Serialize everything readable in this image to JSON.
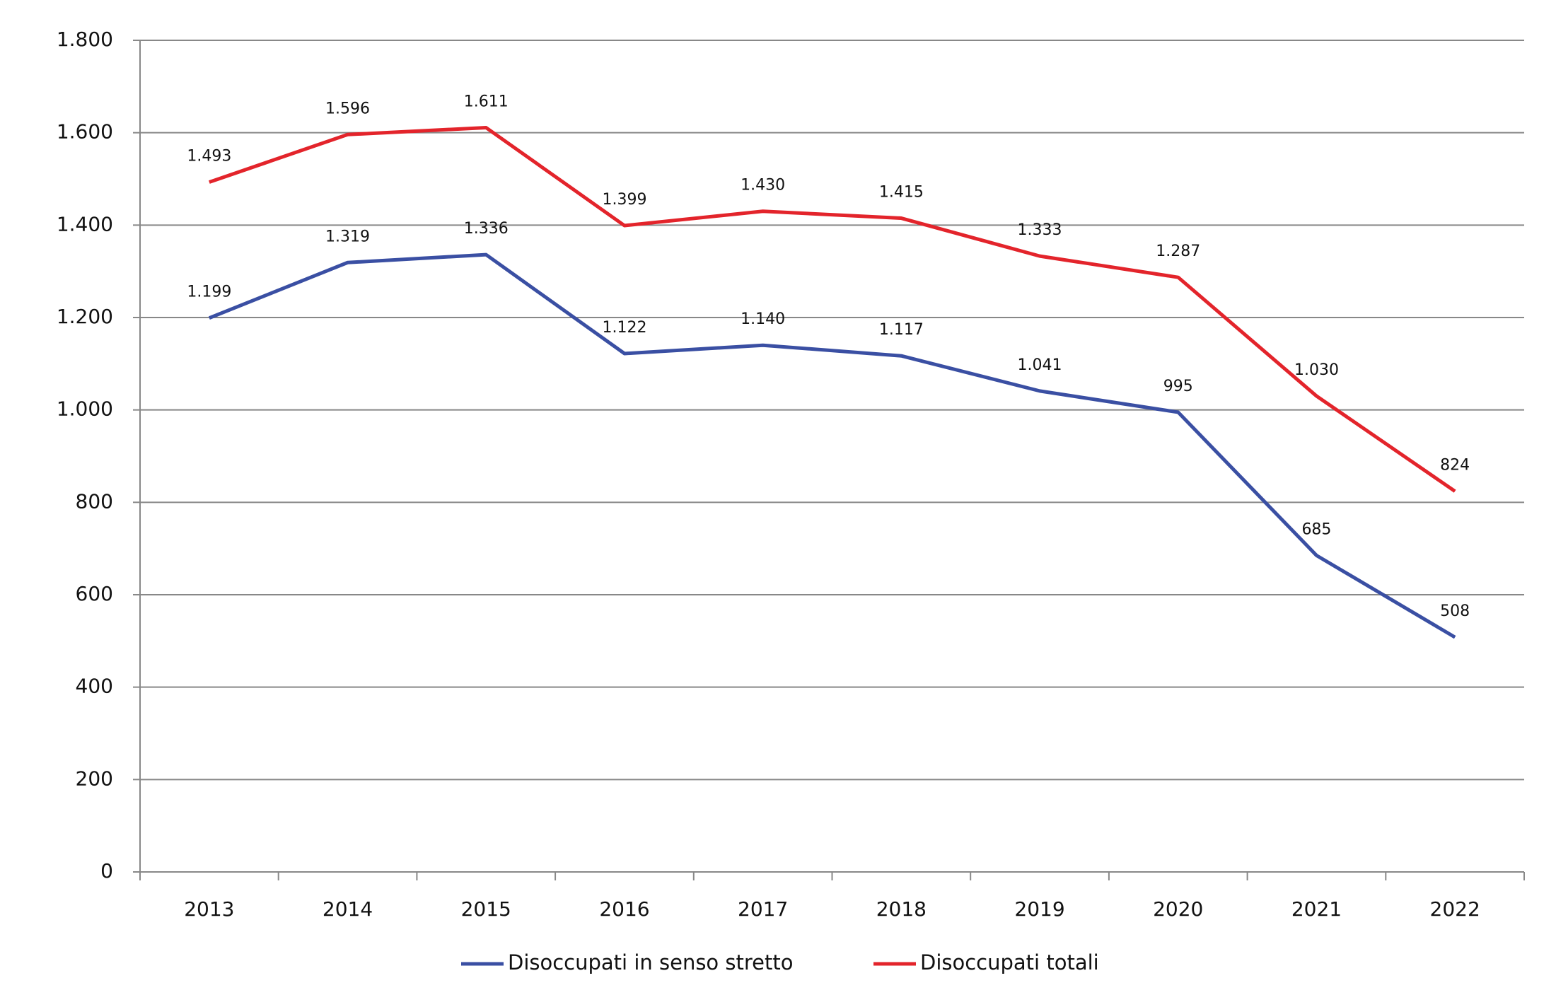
{
  "chart_data": {
    "type": "line",
    "categories": [
      "2013",
      "2014",
      "2015",
      "2016",
      "2017",
      "2018",
      "2019",
      "2020",
      "2021",
      "2022"
    ],
    "series": [
      {
        "name": "Disoccupati in senso stretto",
        "color": "#3a4fa3",
        "values": [
          1199,
          1319,
          1336,
          1122,
          1140,
          1117,
          1041,
          995,
          685,
          508
        ],
        "value_labels": [
          "1.199",
          "1.319",
          "1.336",
          "1.122",
          "1.140",
          "1.117",
          "1.041",
          "995",
          "685",
          "508"
        ]
      },
      {
        "name": "Disoccupati totali",
        "color": "#e3242b",
        "values": [
          1493,
          1596,
          1611,
          1399,
          1430,
          1415,
          1333,
          1287,
          1030,
          824
        ],
        "value_labels": [
          "1.493",
          "1.596",
          "1.611",
          "1.399",
          "1.430",
          "1.415",
          "1.333",
          "1.287",
          "1.030",
          "824"
        ]
      }
    ],
    "ylim": [
      0,
      1800
    ],
    "yticks": [
      0,
      200,
      400,
      600,
      800,
      {
        "value": 1000,
        "label": "1.000"
      },
      {
        "value": 1200,
        "label": "1.200"
      },
      {
        "value": 1400,
        "label": "1.400"
      },
      {
        "value": 1600,
        "label": "1.600"
      },
      {
        "value": 1800,
        "label": "1.800"
      }
    ],
    "grid": true,
    "legend": "bottom"
  }
}
